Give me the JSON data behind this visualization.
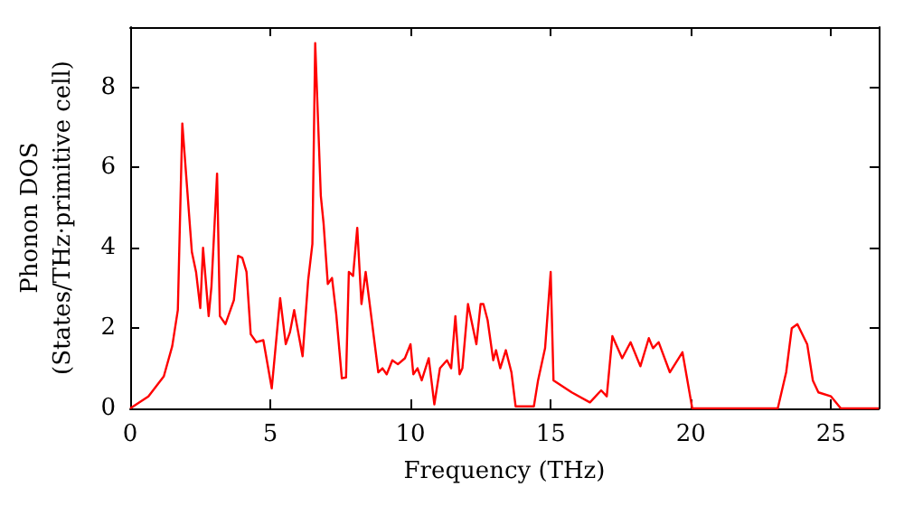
{
  "chart_data": {
    "type": "line",
    "xlabel": "Frequency (THz)",
    "ylabel": "Phonon DOS\n(States/THz·primitive cell)",
    "xlim": [
      0,
      26.7
    ],
    "ylim": [
      0,
      9.5
    ],
    "xticks": [
      0,
      5,
      10,
      15,
      20,
      25
    ],
    "yticks": [
      0,
      2,
      4,
      6,
      8
    ],
    "grid": false,
    "marker": "none",
    "line_style": "solid",
    "series": [
      {
        "color": "#ff0000",
        "x": [
          0,
          0.65,
          1.2,
          1.5,
          1.7,
          1.86,
          2.03,
          2.2,
          2.35,
          2.5,
          2.6,
          2.8,
          2.9,
          3.1,
          3.2,
          3.4,
          3.7,
          3.85,
          4.0,
          4.15,
          4.3,
          4.5,
          4.75,
          5.05,
          5.35,
          5.55,
          5.7,
          5.85,
          6.15,
          6.35,
          6.5,
          6.6,
          6.8,
          6.9,
          7.05,
          7.2,
          7.35,
          7.55,
          7.7,
          7.8,
          7.95,
          8.1,
          8.25,
          8.4,
          8.85,
          9.0,
          9.15,
          9.35,
          9.55,
          9.8,
          10.0,
          10.1,
          10.25,
          10.4,
          10.65,
          10.85,
          11.05,
          11.3,
          11.45,
          11.6,
          11.75,
          11.85,
          12.05,
          12.35,
          12.5,
          12.6,
          12.75,
          12.95,
          13.05,
          13.2,
          13.4,
          13.6,
          13.75,
          14.4,
          14.55,
          14.8,
          15.0,
          15.1,
          15.75,
          16.4,
          16.8,
          17.0,
          17.2,
          17.55,
          17.85,
          18.2,
          18.5,
          18.65,
          18.85,
          19.25,
          19.7,
          20.05,
          23.1,
          23.4,
          23.6,
          23.8,
          24.15,
          24.35,
          24.55,
          25.0,
          25.35,
          26.7
        ],
        "values": [
          0,
          0.3,
          0.8,
          1.55,
          2.45,
          7.1,
          5.5,
          3.9,
          3.4,
          2.5,
          4.0,
          2.3,
          3.05,
          5.85,
          2.3,
          2.1,
          2.7,
          3.8,
          3.75,
          3.4,
          1.85,
          1.65,
          1.7,
          0.5,
          2.75,
          1.6,
          1.9,
          2.45,
          1.3,
          3.2,
          4.1,
          9.1,
          5.3,
          4.6,
          3.1,
          3.25,
          2.35,
          0.75,
          0.77,
          3.4,
          3.3,
          4.5,
          2.6,
          3.4,
          0.9,
          1.0,
          0.85,
          1.2,
          1.1,
          1.25,
          1.6,
          0.85,
          1.0,
          0.7,
          1.25,
          0.1,
          1.0,
          1.2,
          1.0,
          2.3,
          0.85,
          1.0,
          2.6,
          1.6,
          2.6,
          2.6,
          2.2,
          1.2,
          1.45,
          1.0,
          1.45,
          0.9,
          0.05,
          0.05,
          0.7,
          1.5,
          3.4,
          0.7,
          0.4,
          0.15,
          0.45,
          0.3,
          1.8,
          1.25,
          1.65,
          1.05,
          1.75,
          1.5,
          1.65,
          0.9,
          1.4,
          0,
          0,
          0.9,
          2.0,
          2.1,
          1.6,
          0.7,
          0.4,
          0.3,
          0,
          0
        ]
      }
    ]
  }
}
